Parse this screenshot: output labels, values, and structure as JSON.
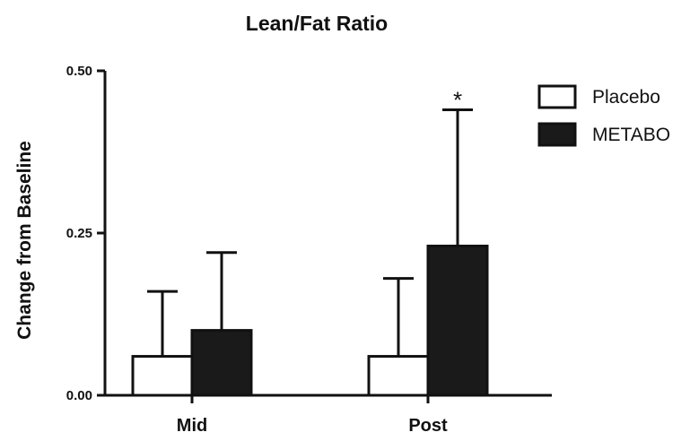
{
  "chart_data": {
    "type": "bar",
    "title": "Lean/Fat Ratio",
    "xlabel": "",
    "ylabel": "Change from Baseline",
    "categories": [
      "Mid",
      "Post"
    ],
    "series": [
      {
        "name": "Placebo",
        "values": [
          0.06,
          0.06
        ],
        "error_upper": [
          0.16,
          0.18
        ],
        "fill": "#ffffff",
        "stroke": "#111111"
      },
      {
        "name": "METABO",
        "values": [
          0.1,
          0.23
        ],
        "error_upper": [
          0.22,
          0.44
        ],
        "fill": "#1a1a1a",
        "stroke": "#111111"
      }
    ],
    "ylim": [
      0,
      0.5
    ],
    "yticks": [
      "0.00",
      "0.25",
      "0.50"
    ],
    "grid": false,
    "legend_position": "top-right",
    "annotations": [
      {
        "text": "*",
        "category": "Post",
        "series": "METABO"
      }
    ]
  }
}
